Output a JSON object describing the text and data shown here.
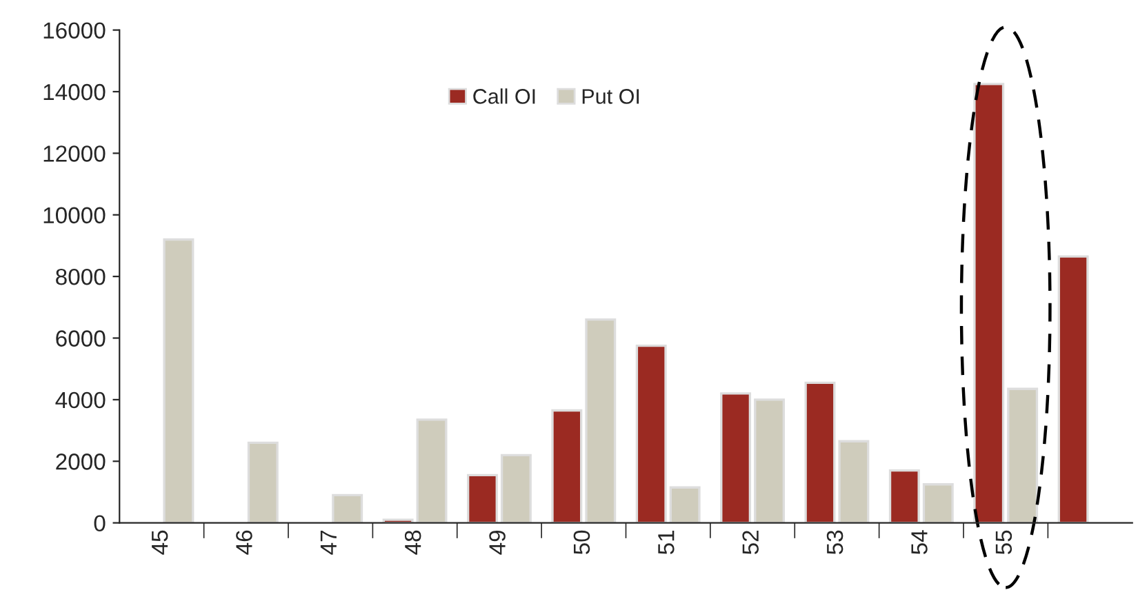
{
  "chart_data": {
    "type": "bar",
    "categories": [
      "45",
      "46",
      "47",
      "48",
      "49",
      "50",
      "51",
      "52",
      "53",
      "54",
      "55",
      null
    ],
    "series": [
      {
        "name": "Call OI",
        "color": "#9b2a22",
        "values": [
          null,
          null,
          null,
          100,
          1550,
          3650,
          5750,
          4200,
          4550,
          1700,
          14250,
          8650
        ]
      },
      {
        "name": "Put OI",
        "color": "#cfccbc",
        "values": [
          9200,
          2600,
          900,
          3350,
          2200,
          6600,
          1150,
          4000,
          2650,
          1250,
          4350,
          null
        ]
      }
    ],
    "ylim": [
      0,
      16000
    ],
    "yticks": [
      0,
      2000,
      4000,
      6000,
      8000,
      10000,
      12000,
      14000,
      16000
    ],
    "grid": false,
    "legend": "top"
  }
}
